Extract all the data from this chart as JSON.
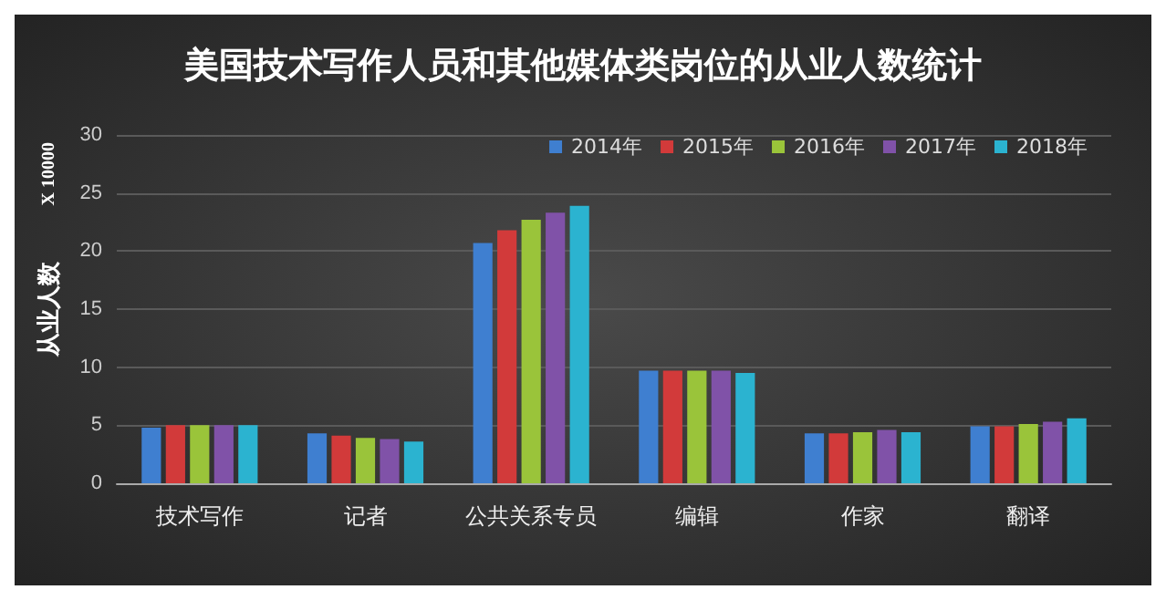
{
  "chart_data": {
    "type": "bar",
    "title": "美国技术写作人员和其他媒体类岗位的从业人数统计",
    "ylabel": "从业人数",
    "annotations": [
      "X 10000"
    ],
    "categories": [
      "技术写作",
      "记者",
      "公共关系专员",
      "编辑",
      "作家",
      "翻译"
    ],
    "series": [
      {
        "name": "2014年",
        "color": "#3f7fd0",
        "values": [
          4.8,
          4.3,
          20.7,
          9.7,
          4.3,
          4.9
        ]
      },
      {
        "name": "2015年",
        "color": "#d23a3a",
        "values": [
          5.0,
          4.1,
          21.8,
          9.7,
          4.3,
          4.9
        ]
      },
      {
        "name": "2016年",
        "color": "#9ac43a",
        "values": [
          5.0,
          3.9,
          22.7,
          9.7,
          4.4,
          5.1
        ]
      },
      {
        "name": "2017年",
        "color": "#8052a8",
        "values": [
          5.0,
          3.8,
          23.3,
          9.7,
          4.6,
          5.3
        ]
      },
      {
        "name": "2018年",
        "color": "#2bb3d0",
        "values": [
          5.0,
          3.6,
          23.9,
          9.5,
          4.4,
          5.6
        ]
      }
    ],
    "ylim": [
      0,
      30
    ],
    "yticks": [
      0,
      5,
      10,
      15,
      20,
      25,
      30
    ],
    "grid": "y",
    "legend": "top right"
  }
}
